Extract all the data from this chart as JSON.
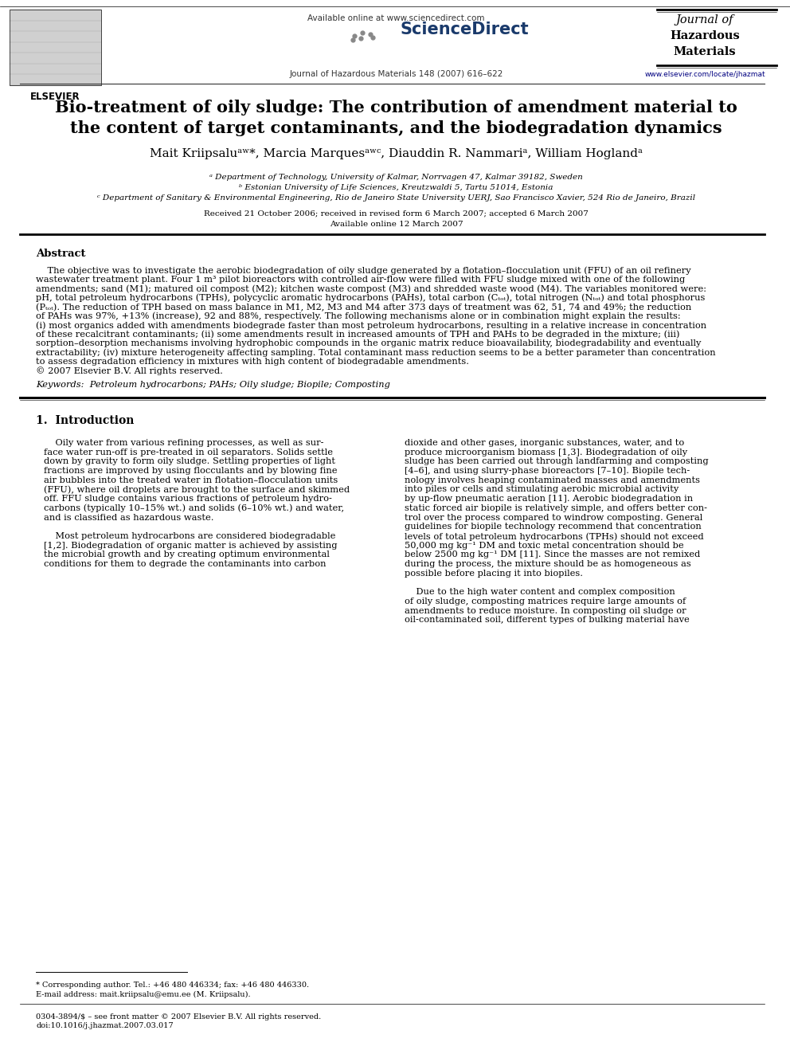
{
  "background_color": "#ffffff",
  "available_text": "Available online at www.sciencedirect.com",
  "sciencedirect_text": "ScienceDirect",
  "journal_issue": "Journal of Hazardous Materials 148 (2007) 616–622",
  "journal_line1": "Journal of",
  "journal_line2": "Hazardous",
  "journal_line3": "Materials",
  "website": "www.elsevier.com/locate/jhazmat",
  "elsevier_text": "ELSEVIER",
  "title_line1": "Bio-treatment of oily sludge: The contribution of amendment material to",
  "title_line2": "the content of target contaminants, and the biodegradation dynamics",
  "author_line": "Mait Kriipsaluᵃʷ*, Marcia Marquesᵃʷᶜ, Diauddin R. Nammariᵃ, William Hoglandᵃ",
  "affil_a": "ᵃ Department of Technology, University of Kalmar, Norrvagen 47, Kalmar 39182, Sweden",
  "affil_b": "ᵇ Estonian University of Life Sciences, Kreutzwaldi 5, Tartu 51014, Estonia",
  "affil_c": "ᶜ Department of Sanitary & Environmental Engineering, Rio de Janeiro State University UERJ, Sao Francisco Xavier, 524 Rio de Janeiro, Brazil",
  "received": "Received 21 October 2006; received in revised form 6 March 2007; accepted 6 March 2007",
  "available_online": "Available online 12 March 2007",
  "abstract_title": "Abstract",
  "abstract_lines": [
    "    The objective was to investigate the aerobic biodegradation of oily sludge generated by a flotation–flocculation unit (FFU) of an oil refinery",
    "wastewater treatment plant. Four 1 m³ pilot bioreactors with controlled air-flow were filled with FFU sludge mixed with one of the following",
    "amendments; sand (M1); matured oil compost (M2); kitchen waste compost (M3) and shredded waste wood (M4). The variables monitored were:",
    "pH, total petroleum hydrocarbons (TPHs), polycyclic aromatic hydrocarbons (PAHs), total carbon (Cₜₒₜ), total nitrogen (Nₜₒₜ) and total phosphorus",
    "(Pₜₒₜ). The reduction of TPH based on mass balance in M1, M2, M3 and M4 after 373 days of treatment was 62, 51, 74 and 49%; the reduction",
    "of PAHs was 97%, +13% (increase), 92 and 88%, respectively. The following mechanisms alone or in combination might explain the results:",
    "(i) most organics added with amendments biodegrade faster than most petroleum hydrocarbons, resulting in a relative increase in concentration",
    "of these recalcitrant contaminants; (ii) some amendments result in increased amounts of TPH and PAHs to be degraded in the mixture; (iii)",
    "sorption–desorption mechanisms involving hydrophobic compounds in the organic matrix reduce bioavailability, biodegradability and eventually",
    "extractability; (iv) mixture heterogeneity affecting sampling. Total contaminant mass reduction seems to be a better parameter than concentration",
    "to assess degradation efficiency in mixtures with high content of biodegradable amendments.",
    "© 2007 Elsevier B.V. All rights reserved."
  ],
  "keywords": "Keywords:  Petroleum hydrocarbons; PAHs; Oily sludge; Biopile; Composting",
  "section1_title": "1.  Introduction",
  "col1_lines": [
    "    Oily water from various refining processes, as well as sur-",
    "face water run-off is pre-treated in oil separators. Solids settle",
    "down by gravity to form oily sludge. Settling properties of light",
    "fractions are improved by using flocculants and by blowing fine",
    "air bubbles into the treated water in flotation–flocculation units",
    "(FFU), where oil droplets are brought to the surface and skimmed",
    "off. FFU sludge contains various fractions of petroleum hydro-",
    "carbons (typically 10–15% wt.) and solids (6–10% wt.) and water,",
    "and is classified as hazardous waste.",
    "",
    "    Most petroleum hydrocarbons are considered biodegradable",
    "[1,2]. Biodegradation of organic matter is achieved by assisting",
    "the microbial growth and by creating optimum environmental",
    "conditions for them to degrade the contaminants into carbon"
  ],
  "col2_lines": [
    "dioxide and other gases, inorganic substances, water, and to",
    "produce microorganism biomass [1,3]. Biodegradation of oily",
    "sludge has been carried out through landfarming and composting",
    "[4–6], and using slurry-phase bioreactors [7–10]. Biopile tech-",
    "nology involves heaping contaminated masses and amendments",
    "into piles or cells and stimulating aerobic microbial activity",
    "by up-flow pneumatic aeration [11]. Aerobic biodegradation in",
    "static forced air biopile is relatively simple, and offers better con-",
    "trol over the process compared to windrow composting. General",
    "guidelines for biopile technology recommend that concentration",
    "levels of total petroleum hydrocarbons (TPHs) should not exceed",
    "50,000 mg kg⁻¹ DM and toxic metal concentration should be",
    "below 2500 mg kg⁻¹ DM [11]. Since the masses are not remixed",
    "during the process, the mixture should be as homogeneous as",
    "possible before placing it into biopiles.",
    "",
    "    Due to the high water content and complex composition",
    "of oily sludge, composting matrices require large amounts of",
    "amendments to reduce moisture. In composting oil sludge or",
    "oil-contaminated soil, different types of bulking material have"
  ],
  "footnote_star": "* Corresponding author. Tel.: +46 480 446334; fax: +46 480 446330.",
  "footnote_email": "E-mail address: mait.kriipsalu@emu.ee (M. Kriipsalu).",
  "footnote_issn": "0304-3894/$ – see front matter © 2007 Elsevier B.V. All rights reserved.",
  "footnote_doi": "doi:10.1016/j.jhazmat.2007.03.017"
}
